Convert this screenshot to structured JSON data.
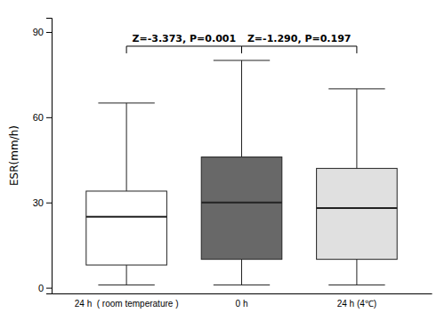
{
  "chart_data": {
    "type": "box",
    "ylabel": "ESR(mm/h)",
    "categories": [
      "24 h  ( room temperature )",
      "0 h",
      "24 h (4℃)"
    ],
    "boxes": [
      {
        "whisker_low": 1,
        "q1": 8,
        "median": 25,
        "q3": 34,
        "whisker_high": 65
      },
      {
        "whisker_low": 1,
        "q1": 10,
        "median": 30,
        "q3": 46,
        "whisker_high": 80
      },
      {
        "whisker_low": 1,
        "q1": 10,
        "median": 28,
        "q3": 42,
        "whisker_high": 70
      }
    ],
    "colors": [
      "white",
      "#686868",
      "#e0e0e0"
    ],
    "annotations": [
      {
        "text": "Z=-3.373, P=0.001",
        "between": [
          "24 h  ( room temperature )",
          "0 h"
        ],
        "y": 85
      },
      {
        "text": "Z=-1.290, P=0.197",
        "between": [
          "0 h",
          "24 h (4℃)"
        ],
        "y": 85
      }
    ],
    "ylim": [
      -2,
      95
    ],
    "yticks": [
      0,
      30,
      60,
      90
    ],
    "grid": false
  }
}
